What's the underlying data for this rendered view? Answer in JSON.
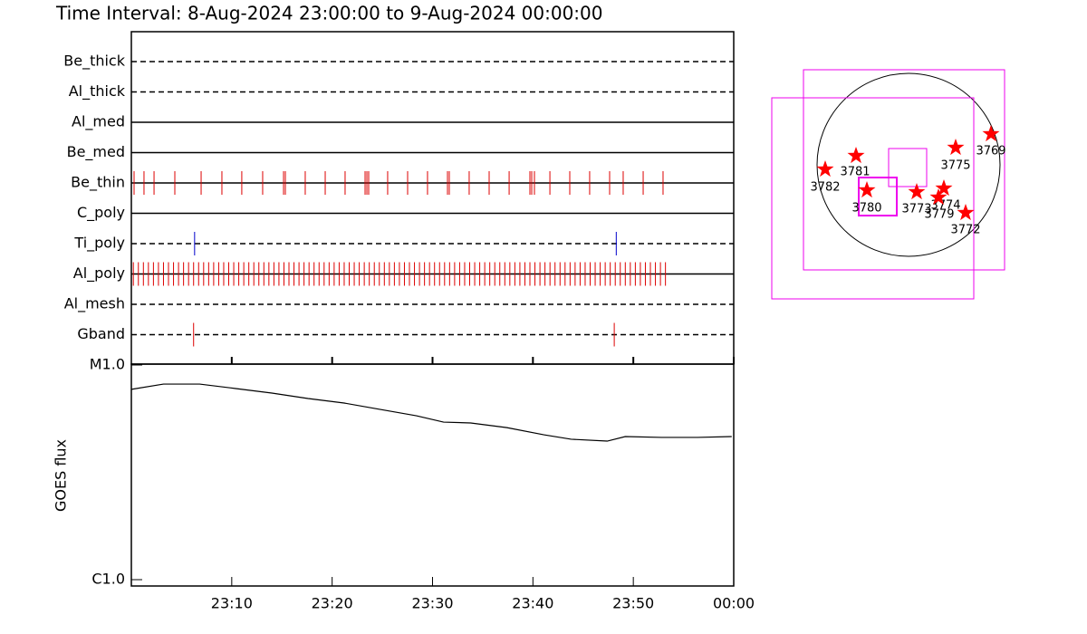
{
  "chart_data": [
    {
      "type": "timeline",
      "title": "Time Interval:  8-Aug-2024 23:00:00 to  9-Aug-2024 00:00:00",
      "xlim": [
        0,
        60
      ],
      "rows": [
        {
          "name": "Be_thick",
          "style": "dashed",
          "color": "#cc0000",
          "events": []
        },
        {
          "name": "Al_thick",
          "style": "dashed",
          "color": "#cc0000",
          "events": []
        },
        {
          "name": "Al_med",
          "style": "solid",
          "color": "#cc0000",
          "events": []
        },
        {
          "name": "Be_med",
          "style": "solid",
          "color": "#cc0000",
          "events": []
        },
        {
          "name": "Be_thin",
          "style": "solid",
          "color": "#dd0000",
          "events": [
            0.27,
            1.26,
            2.26,
            4.33,
            6.95,
            9.02,
            11.0,
            13.08,
            15.16,
            15.34,
            17.32,
            19.31,
            21.29,
            23.28,
            23.46,
            23.64,
            25.53,
            27.52,
            29.5,
            31.49,
            31.67,
            33.65,
            35.64,
            37.63,
            39.7,
            39.88,
            40.15,
            41.69,
            43.67,
            45.65,
            47.64,
            48.99,
            50.98,
            52.96
          ]
        },
        {
          "name": "C_poly",
          "style": "solid",
          "color": "#cc0000",
          "events": []
        },
        {
          "name": "Ti_poly",
          "style": "dashed",
          "color": "#0000cc",
          "events": [
            6.3,
            48.3
          ]
        },
        {
          "name": "Al_poly",
          "style": "solid",
          "color": "#dd0000",
          "events": [
            0.2,
            0.7,
            1.2,
            1.7,
            2.2,
            2.7,
            3.2,
            3.7,
            4.2,
            4.7,
            5.2,
            5.7,
            6.2,
            6.7,
            7.2,
            7.7,
            8.2,
            8.7,
            9.2,
            9.7,
            10.2,
            10.7,
            11.2,
            11.7,
            12.2,
            12.7,
            13.2,
            13.7,
            14.2,
            14.7,
            15.2,
            15.7,
            16.2,
            16.7,
            17.2,
            17.7,
            18.2,
            18.7,
            19.2,
            19.7,
            20.2,
            20.7,
            21.2,
            21.7,
            22.2,
            22.7,
            23.2,
            23.7,
            24.2,
            24.7,
            25.2,
            25.7,
            26.2,
            26.7,
            27.2,
            27.7,
            28.2,
            28.7,
            29.2,
            29.7,
            30.2,
            30.7,
            31.2,
            31.7,
            32.2,
            32.7,
            33.2,
            33.7,
            34.2,
            34.7,
            35.2,
            35.7,
            36.2,
            36.7,
            37.2,
            37.7,
            38.2,
            38.7,
            39.2,
            39.7,
            40.2,
            40.7,
            41.2,
            41.7,
            42.2,
            42.7,
            43.2,
            43.7,
            44.2,
            44.7,
            45.2,
            45.7,
            46.2,
            46.7,
            47.2,
            47.7,
            48.2,
            48.7,
            49.2,
            49.7,
            50.2,
            50.7,
            51.2,
            51.7,
            52.2,
            52.7,
            53.2
          ]
        },
        {
          "name": "Al_mesh",
          "style": "dashed",
          "color": "#cc0000",
          "events": []
        },
        {
          "name": "Gband",
          "style": "dashed",
          "color": "#dd0000",
          "events": [
            6.2,
            48.1
          ]
        }
      ]
    },
    {
      "type": "line",
      "ylabel": "GOES flux",
      "log_y": true,
      "color": "#000000",
      "x": [
        0,
        3.2,
        6.8,
        10.4,
        14.0,
        17.6,
        21.2,
        24.8,
        28.4,
        31.1,
        33.8,
        37.4,
        41.1,
        43.8,
        47.4,
        49.2,
        52.8,
        56.4,
        59.8
      ],
      "values": [
        7.7e-06,
        8.15e-06,
        8.15e-06,
        7.77e-06,
        7.4e-06,
        6.98e-06,
        6.65e-06,
        6.21e-06,
        5.8e-06,
        5.42e-06,
        5.37e-06,
        5.11e-06,
        4.73e-06,
        4.51e-06,
        4.42e-06,
        4.64e-06,
        4.6e-06,
        4.6e-06,
        4.64e-06
      ],
      "xlim": [
        0,
        60
      ],
      "xticks": [
        {
          "value": 10,
          "label": "23:10"
        },
        {
          "value": 20,
          "label": "23:20"
        },
        {
          "value": 30,
          "label": "23:30"
        },
        {
          "value": 40,
          "label": "23:40"
        },
        {
          "value": 50,
          "label": "23:50"
        },
        {
          "value": 60,
          "label": "00:00"
        }
      ],
      "ylim": [
        1e-06,
        1e-05
      ],
      "yticks": [
        {
          "value": 1e-05,
          "label": "M1.0"
        },
        {
          "value": 1e-06,
          "label": "C1.0"
        }
      ]
    },
    {
      "type": "map",
      "color": "#ff0000",
      "regions": [
        "3782",
        "3781",
        "3780",
        "3773",
        "3774",
        "3779",
        "3775",
        "3769",
        "3772"
      ]
    }
  ]
}
